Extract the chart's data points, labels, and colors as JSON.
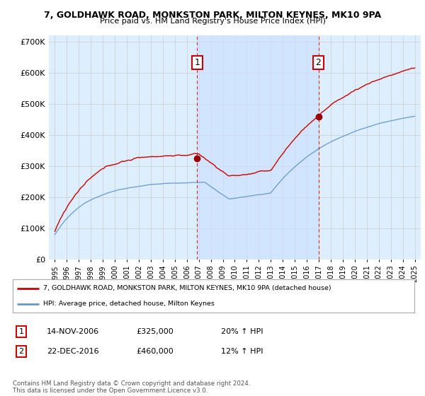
{
  "title": "7, GOLDHAWK ROAD, MONKSTON PARK, MILTON KEYNES, MK10 9PA",
  "subtitle": "Price paid vs. HM Land Registry's House Price Index (HPI)",
  "ylim": [
    0,
    720000
  ],
  "yticks": [
    0,
    100000,
    200000,
    300000,
    400000,
    500000,
    600000,
    700000
  ],
  "ytick_labels": [
    "£0",
    "£100K",
    "£200K",
    "£300K",
    "£400K",
    "£500K",
    "£600K",
    "£700K"
  ],
  "background_color": "#ffffff",
  "plot_bg_color": "#ddeeff",
  "grid_color": "#cccccc",
  "line_color_hpi": "#6699cc",
  "line_color_price": "#cc0000",
  "marker_color": "#990000",
  "sale1_date_num": 2006.87,
  "sale1_price": 325000,
  "sale1_label": "1",
  "sale2_date_num": 2016.97,
  "sale2_price": 460000,
  "sale2_label": "2",
  "legend_line1": "7, GOLDHAWK ROAD, MONKSTON PARK, MILTON KEYNES, MK10 9PA (detached house)",
  "legend_line2": "HPI: Average price, detached house, Milton Keynes",
  "table_row1": [
    "1",
    "14-NOV-2006",
    "£325,000",
    "20% ↑ HPI"
  ],
  "table_row2": [
    "2",
    "22-DEC-2016",
    "£460,000",
    "12% ↑ HPI"
  ],
  "copyright_text": "Contains HM Land Registry data © Crown copyright and database right 2024.\nThis data is licensed under the Open Government Licence v3.0.",
  "xmin": 1994.5,
  "xmax": 2025.5,
  "shade_color": "#cce0ff",
  "shade_alpha": 0.6
}
